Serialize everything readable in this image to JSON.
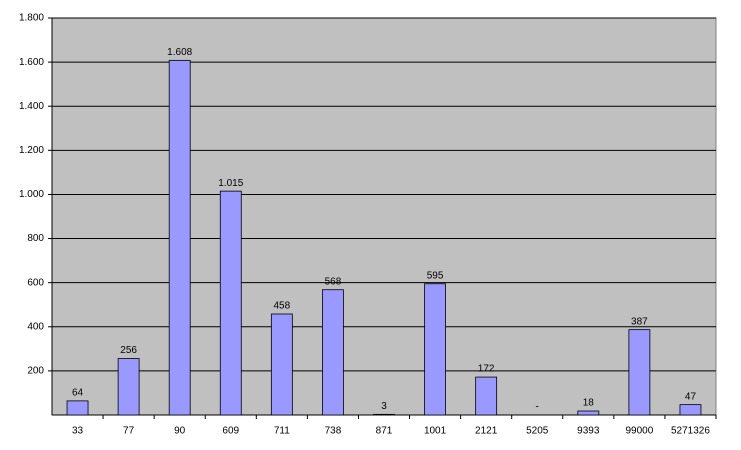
{
  "chart_data": {
    "type": "bar",
    "categories": [
      "33",
      "77",
      "90",
      "609",
      "711",
      "738",
      "871",
      "1001",
      "2121",
      "5205",
      "9393",
      "99000",
      "5271326"
    ],
    "values": [
      64,
      256,
      1608,
      1015,
      458,
      568,
      3,
      595,
      172,
      0,
      18,
      387,
      47
    ],
    "value_labels": [
      "64",
      "256",
      "1.608",
      "1.015",
      "458",
      "568",
      "3",
      "595",
      "172",
      "-",
      "18",
      "387",
      "47"
    ],
    "color": "#9999ff",
    "ylim": [
      0,
      1800
    ],
    "yticks": [
      200,
      400,
      600,
      800,
      {
        "value": 1000,
        "label": "1.000"
      },
      {
        "value": 1200,
        "label": "1.200"
      },
      {
        "value": 1400,
        "label": "1.400"
      },
      {
        "value": 1600,
        "label": "1.600"
      },
      {
        "value": 1800,
        "label": "1.800"
      }
    ],
    "grid": true
  }
}
